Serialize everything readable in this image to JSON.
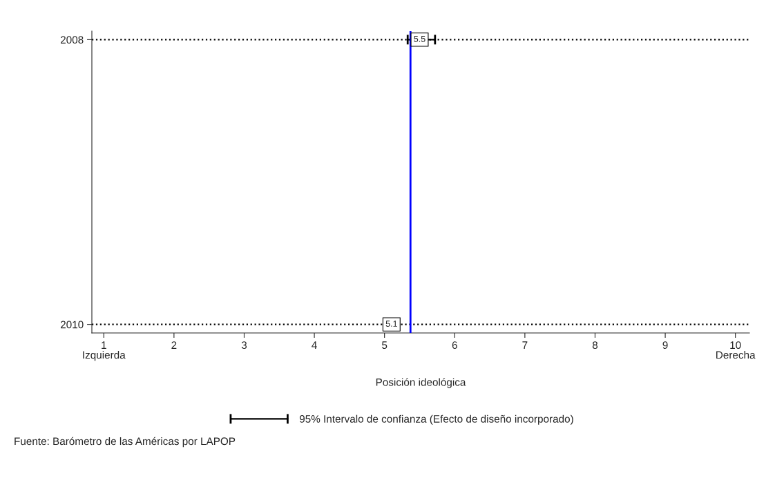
{
  "chart_data": {
    "type": "scatter",
    "orientation": "horizontal",
    "categories": [
      "2008",
      "2010"
    ],
    "series": [
      {
        "name": "95% Intervalo de confianza (Efecto de diseño incorporado)",
        "color": "#000000",
        "values": [
          5.5,
          5.1
        ],
        "errors": [
          [
            5.33,
            5.72
          ],
          [
            5.0,
            5.2
          ]
        ]
      }
    ],
    "data_labels": true,
    "xlim": [
      0.83,
      10.2
    ],
    "xticks": [
      {
        "value": 1,
        "label": "1\nIzquierda"
      },
      2,
      3,
      4,
      5,
      6,
      7,
      8,
      9,
      {
        "value": 10,
        "label": "10\nDerecha"
      }
    ],
    "xlabel": "Posición ideológica",
    "ref_lines": [
      {
        "axis": "x",
        "value": 5.37,
        "color": "#0000ff",
        "line_style": "solid"
      }
    ],
    "grid": "y",
    "line_style": "dotted",
    "legend": "bottom",
    "annotations": [
      "Fuente: Barómetro de las Américas por LAPOP"
    ]
  }
}
